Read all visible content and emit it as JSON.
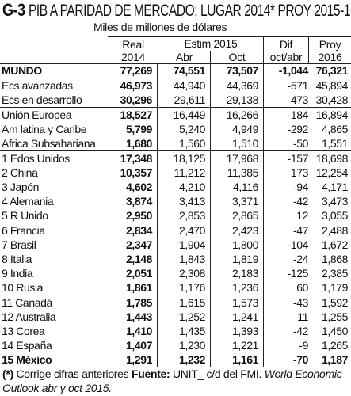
{
  "title": {
    "code": "G-3",
    "text": "PIB A PARIDAD DE MERCADO: LUGAR 2014* PROY 2015-16"
  },
  "subtitle": "Miles de millones de dólares",
  "headers": {
    "real_1": "Real",
    "real_2": "2014",
    "estim": "Estim 2015",
    "abr": "Abr",
    "oct": "Oct",
    "dif_1": "Dif",
    "dif_2": "oct/abr",
    "proy_1": "Proy",
    "proy_2": "2016"
  },
  "rows": [
    {
      "name": "MUNDO",
      "real": "77,269",
      "abr": "74,551",
      "oct": "73,507",
      "dif": "-1,044",
      "proy": "76,321"
    },
    {
      "name": "Ecs avanzadas",
      "real": "46,973",
      "abr": "44,940",
      "oct": "44,369",
      "dif": "-571",
      "proy": "45,894"
    },
    {
      "name": "Ecs en desarrollo",
      "real": "30,296",
      "abr": "29,611",
      "oct": "29,138",
      "dif": "-473",
      "proy": "30,428"
    },
    {
      "name": "Unión Europea",
      "real": "18,527",
      "abr": "16,449",
      "oct": "16,266",
      "dif": "-184",
      "proy": "16,894"
    },
    {
      "name": "Am latina y Caribe",
      "real": "5,799",
      "abr": "5,240",
      "oct": "4,949",
      "dif": "-292",
      "proy": "4,865"
    },
    {
      "name": "Africa Subsahariana",
      "real": "1,680",
      "abr": "1,560",
      "oct": "1,510",
      "dif": "-50",
      "proy": "1,551"
    },
    {
      "name": "1 Edos Unidos",
      "real": "17,348",
      "abr": "18,125",
      "oct": "17,968",
      "dif": "-157",
      "proy": "18,698"
    },
    {
      "name": "2 China",
      "real": "10,357",
      "abr": "11,212",
      "oct": "11,385",
      "dif": "173",
      "proy": "12,254"
    },
    {
      "name": "3 Japón",
      "real": "4,602",
      "abr": "4,210",
      "oct": "4,116",
      "dif": "-94",
      "proy": "4,171"
    },
    {
      "name": "4 Alemania",
      "real": "3,874",
      "abr": "3,413",
      "oct": "3,371",
      "dif": "-42",
      "proy": "3,473"
    },
    {
      "name": "5 R Unido",
      "real": "2,950",
      "abr": "2,853",
      "oct": "2,865",
      "dif": "12",
      "proy": "3,055"
    },
    {
      "name": "6 Francia",
      "real": "2,834",
      "abr": "2,470",
      "oct": "2,423",
      "dif": "-47",
      "proy": "2,488"
    },
    {
      "name": "7 Brasil",
      "real": "2,347",
      "abr": "1,904",
      "oct": "1,800",
      "dif": "-104",
      "proy": "1,672"
    },
    {
      "name": "8 Italia",
      "real": "2,148",
      "abr": "1,843",
      "oct": "1,819",
      "dif": "-24",
      "proy": "1,868"
    },
    {
      "name": "9 India",
      "real": "2,051",
      "abr": "2,308",
      "oct": "2,183",
      "dif": "-125",
      "proy": "2,385"
    },
    {
      "name": "10 Rusia",
      "real": "1,861",
      "abr": "1,176",
      "oct": "1,236",
      "dif": "60",
      "proy": "1,179"
    },
    {
      "name": "11 Canadá",
      "real": "1,785",
      "abr": "1,615",
      "oct": "1,573",
      "dif": "-43",
      "proy": "1,592"
    },
    {
      "name": "12 Australia",
      "real": "1,443",
      "abr": "1,252",
      "oct": "1,241",
      "dif": "-11",
      "proy": "1,255"
    },
    {
      "name": "13 Corea",
      "real": "1,410",
      "abr": "1,435",
      "oct": "1,393",
      "dif": "-42",
      "proy": "1,450"
    },
    {
      "name": "14 España",
      "real": "1,407",
      "abr": "1,230",
      "oct": "1,221",
      "dif": "-9",
      "proy": "1,265"
    },
    {
      "name": "15 México",
      "real": "1,291",
      "abr": "1,232",
      "oct": "1,161",
      "dif": "-70",
      "proy": "1,187"
    }
  ],
  "footnote": {
    "mark": "(*)",
    "note": " Corrige cifras anteriores ",
    "source_label": "Fuente:",
    "source_text": " UNIT_ c/d del FMI. ",
    "source_italic": "World Economic Outlook abr y oct  2015."
  }
}
